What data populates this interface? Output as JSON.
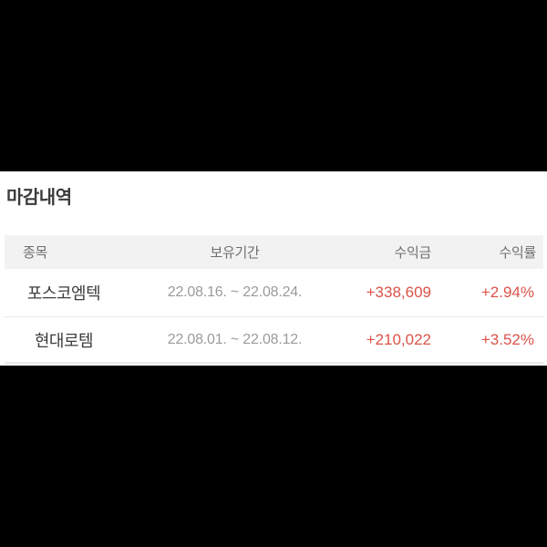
{
  "section": {
    "title": "마감내역"
  },
  "table": {
    "columns": [
      {
        "key": "name",
        "label": "종목"
      },
      {
        "key": "period",
        "label": "보유기간"
      },
      {
        "key": "profit",
        "label": "수익금"
      },
      {
        "key": "rate",
        "label": "수익률"
      }
    ],
    "rows": [
      {
        "name": "포스코엠텍",
        "period": "22.08.16. ~ 22.08.24.",
        "profit": "+338,609",
        "rate": "+2.94%"
      },
      {
        "name": "현대로템",
        "period": "22.08.01. ~ 22.08.12.",
        "profit": "+210,022",
        "rate": "+3.52%"
      }
    ]
  },
  "colors": {
    "positive": "#dc5349",
    "header-bg": "#f2f2f2",
    "header-text": "#6f6f6f",
    "title-text": "#3b3b3b",
    "stock-text": "#3d3d3d",
    "period-text": "#9b9b9b",
    "divider": "#eaeaea",
    "panel-bg": "#ffffff",
    "letterbox": "#000000"
  }
}
